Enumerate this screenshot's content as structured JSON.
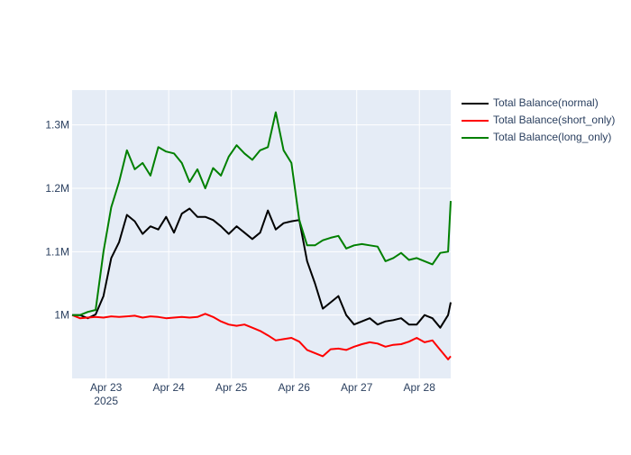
{
  "chart_data": {
    "type": "line",
    "title": "",
    "xlabel": "",
    "ylabel": "",
    "plot_background": "#e5ecf6",
    "grid": true,
    "legend_position": "top-right",
    "x_ticks": [
      {
        "date": "2025-04-23",
        "label": "Apr 23",
        "sublabel": "2025"
      },
      {
        "date": "2025-04-24",
        "label": "Apr 24",
        "sublabel": ""
      },
      {
        "date": "2025-04-25",
        "label": "Apr 25",
        "sublabel": ""
      },
      {
        "date": "2025-04-26",
        "label": "Apr 26",
        "sublabel": ""
      },
      {
        "date": "2025-04-27",
        "label": "Apr 27",
        "sublabel": ""
      },
      {
        "date": "2025-04-28",
        "label": "Apr 28",
        "sublabel": ""
      }
    ],
    "xlim": [
      "2025-04-22T11:00",
      "2025-04-28T12:00"
    ],
    "y_ticks": [
      {
        "value": 1000000,
        "label": "1M"
      },
      {
        "value": 1100000,
        "label": "1.1M"
      },
      {
        "value": 1200000,
        "label": "1.2M"
      },
      {
        "value": 1300000,
        "label": "1.3M"
      }
    ],
    "ylim": [
      900000,
      1355000
    ],
    "x": [
      "2025-04-22T11:00",
      "2025-04-22T14:00",
      "2025-04-22T17:00",
      "2025-04-22T20:00",
      "2025-04-22T23:00",
      "2025-04-23T02:00",
      "2025-04-23T05:00",
      "2025-04-23T08:00",
      "2025-04-23T11:00",
      "2025-04-23T14:00",
      "2025-04-23T17:00",
      "2025-04-23T20:00",
      "2025-04-23T23:00",
      "2025-04-24T02:00",
      "2025-04-24T05:00",
      "2025-04-24T08:00",
      "2025-04-24T11:00",
      "2025-04-24T14:00",
      "2025-04-24T17:00",
      "2025-04-24T20:00",
      "2025-04-24T23:00",
      "2025-04-25T02:00",
      "2025-04-25T05:00",
      "2025-04-25T08:00",
      "2025-04-25T11:00",
      "2025-04-25T14:00",
      "2025-04-25T17:00",
      "2025-04-25T20:00",
      "2025-04-25T23:00",
      "2025-04-26T02:00",
      "2025-04-26T05:00",
      "2025-04-26T08:00",
      "2025-04-26T11:00",
      "2025-04-26T14:00",
      "2025-04-26T17:00",
      "2025-04-26T20:00",
      "2025-04-26T23:00",
      "2025-04-27T02:00",
      "2025-04-27T05:00",
      "2025-04-27T08:00",
      "2025-04-27T11:00",
      "2025-04-27T14:00",
      "2025-04-27T17:00",
      "2025-04-27T20:00",
      "2025-04-27T23:00",
      "2025-04-28T02:00",
      "2025-04-28T05:00",
      "2025-04-28T08:00",
      "2025-04-28T11:00",
      "2025-04-28T12:00"
    ],
    "series": [
      {
        "name": "Total Balance(normal)",
        "color": "#000000",
        "values": [
          1000000,
          1000000,
          995000,
          1001000,
          1030000,
          1090000,
          1115000,
          1158000,
          1148000,
          1128000,
          1140000,
          1135000,
          1155000,
          1130000,
          1160000,
          1168000,
          1155000,
          1155000,
          1150000,
          1140000,
          1128000,
          1140000,
          1130000,
          1120000,
          1130000,
          1165000,
          1135000,
          1145000,
          1148000,
          1150000,
          1085000,
          1050000,
          1010000,
          1020000,
          1030000,
          1000000,
          985000,
          990000,
          995000,
          985000,
          990000,
          992000,
          995000,
          985000,
          985000,
          1000000,
          995000,
          980000,
          1000000,
          1020000
        ]
      },
      {
        "name": "Total Balance(short_only)",
        "color": "#ff0000",
        "values": [
          1000000,
          995000,
          996000,
          997000,
          996000,
          998000,
          997000,
          998000,
          999000,
          996000,
          998000,
          997000,
          995000,
          996000,
          997000,
          996000,
          997000,
          1002000,
          997000,
          990000,
          985000,
          983000,
          985000,
          980000,
          975000,
          968000,
          960000,
          962000,
          964000,
          958000,
          945000,
          940000,
          935000,
          946000,
          947000,
          945000,
          950000,
          954000,
          957000,
          955000,
          950000,
          953000,
          954000,
          958000,
          964000,
          957000,
          960000,
          945000,
          930000,
          935000
        ]
      },
      {
        "name": "Total Balance(long_only)",
        "color": "#008000",
        "values": [
          1000000,
          1000000,
          1005000,
          1008000,
          1100000,
          1170000,
          1210000,
          1260000,
          1230000,
          1240000,
          1220000,
          1265000,
          1258000,
          1255000,
          1240000,
          1210000,
          1230000,
          1200000,
          1232000,
          1220000,
          1250000,
          1268000,
          1255000,
          1245000,
          1260000,
          1265000,
          1320000,
          1260000,
          1240000,
          1150000,
          1110000,
          1110000,
          1118000,
          1122000,
          1125000,
          1105000,
          1110000,
          1112000,
          1110000,
          1108000,
          1085000,
          1090000,
          1098000,
          1087000,
          1090000,
          1085000,
          1080000,
          1098000,
          1100000,
          1180000
        ]
      }
    ]
  }
}
